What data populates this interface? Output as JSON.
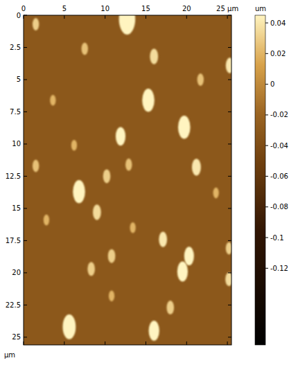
{
  "chart_data": {
    "type": "heatmap",
    "y_label": "µm",
    "colorbar_label": "um",
    "xlim": [
      0,
      25.5
    ],
    "ylim": [
      0,
      25.6
    ],
    "xticks": [
      0,
      5,
      10,
      15,
      20,
      {
        "value": 25,
        "label": "25 µm"
      }
    ],
    "yticks": [
      0,
      2.5,
      5,
      7.5,
      10,
      12.5,
      15,
      17.5,
      20,
      22.5,
      25
    ],
    "background": -0.03,
    "particles": {
      "x": [
        12.7,
        16.0,
        15.3,
        19.7,
        11.9,
        6.8,
        9.0,
        21.2,
        17.1,
        20.3,
        19.5,
        10.8,
        5.6,
        16.0,
        25.3,
        1.5,
        8.3,
        12.9,
        25.2,
        25.2,
        18.0,
        10.2,
        3.6,
        7.5,
        21.7,
        6.2,
        13.4,
        2.8,
        23.6,
        10.8,
        1.5
      ],
      "y": [
        0.3,
        3.2,
        6.6,
        8.7,
        9.4,
        13.7,
        15.3,
        11.8,
        17.4,
        18.7,
        19.9,
        18.7,
        24.2,
        24.5,
        3.9,
        11.7,
        19.7,
        11.6,
        18.1,
        20.5,
        22.7,
        12.5,
        6.6,
        2.6,
        5.0,
        10.1,
        16.5,
        15.9,
        13.8,
        21.8,
        0.7
      ],
      "z": [
        0.045,
        0.035,
        0.045,
        0.045,
        0.045,
        0.045,
        0.035,
        0.04,
        0.04,
        0.045,
        0.045,
        0.03,
        0.045,
        0.045,
        0.04,
        0.025,
        0.03,
        0.025,
        0.03,
        0.035,
        0.03,
        0.03,
        0.02,
        0.025,
        0.025,
        0.02,
        0.02,
        0.02,
        0.02,
        0.02,
        0.03
      ],
      "size": [
        2.0,
        1.0,
        1.5,
        1.5,
        1.2,
        1.5,
        1.0,
        1.1,
        1.0,
        1.2,
        1.3,
        0.9,
        1.6,
        1.3,
        1.0,
        0.8,
        0.9,
        0.8,
        0.8,
        0.9,
        0.9,
        0.9,
        0.7,
        0.8,
        0.8,
        0.7,
        0.7,
        0.7,
        0.7,
        0.7,
        0.8
      ]
    },
    "colorbar": {
      "range": [
        -0.17,
        0.045
      ],
      "ticks": [
        0.04,
        0.02,
        0,
        -0.02,
        -0.04,
        -0.06,
        -0.08,
        -0.1,
        -0.12
      ]
    }
  }
}
